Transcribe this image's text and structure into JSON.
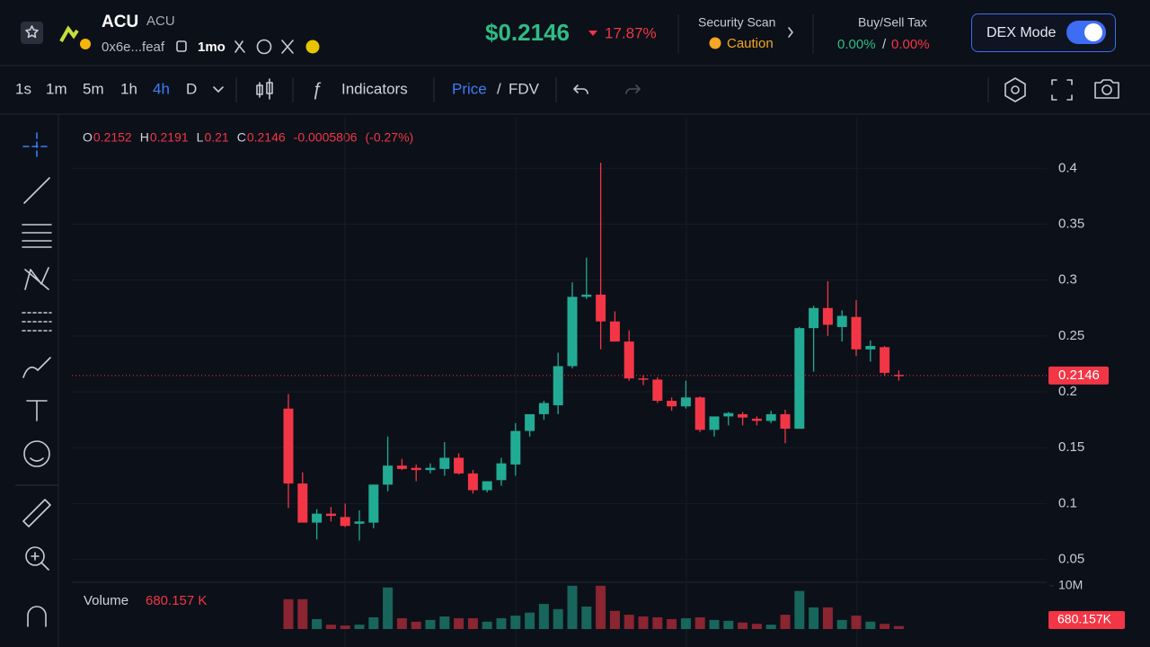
{
  "header": {
    "symbol": "ACU",
    "name": "ACU",
    "address": "0x6e...feaf",
    "age": "1mo",
    "price": "$0.2146",
    "change": "17.87%",
    "security_label": "Security Scan",
    "security_status": "Caution",
    "tax_label": "Buy/Sell Tax",
    "buy_tax": "0.00%",
    "tax_separator": "/",
    "sell_tax": "0.00%",
    "mode_button": "DEX Mode"
  },
  "toolbar": {
    "intervals": [
      "1s",
      "1m",
      "5m",
      "1h",
      "4h",
      "D"
    ],
    "active_interval": "4h",
    "indicators": "Indicators",
    "price_toggle": "Price",
    "separator": "/",
    "fdv_toggle": "FDV"
  },
  "legend": {
    "o_label": "O",
    "h_label": "H",
    "l_label": "L",
    "c_label": "C",
    "change": -0.0005806,
    "change_pct": "(-0.27%)"
  },
  "chart_data": {
    "type": "candlestick",
    "open": [
      0.185,
      0.118,
      0.083,
      0.091,
      0.088,
      0.082,
      0.083,
      0.117,
      0.134,
      0.132,
      0.13,
      0.131,
      0.141,
      0.127,
      0.112,
      0.121,
      0.135,
      0.165,
      0.18,
      0.188,
      0.223,
      0.285,
      0.287,
      0.263,
      0.245,
      0.212,
      0.211,
      0.192,
      0.187,
      0.195,
      0.166,
      0.178,
      0.18,
      0.176,
      0.174,
      0.18,
      0.167,
      0.257,
      0.275,
      0.258,
      0.267,
      0.238,
      0.24,
      0.2152
    ],
    "high": [
      0.198,
      0.128,
      0.095,
      0.097,
      0.1,
      0.094,
      0.117,
      0.16,
      0.14,
      0.135,
      0.136,
      0.155,
      0.145,
      0.13,
      0.12,
      0.141,
      0.172,
      0.18,
      0.192,
      0.235,
      0.298,
      0.32,
      0.405,
      0.272,
      0.255,
      0.215,
      0.213,
      0.195,
      0.21,
      0.196,
      0.177,
      0.182,
      0.182,
      0.178,
      0.183,
      0.184,
      0.258,
      0.277,
      0.299,
      0.273,
      0.282,
      0.246,
      0.241,
      0.2191
    ],
    "low": [
      0.096,
      0.084,
      0.068,
      0.084,
      0.079,
      0.067,
      0.078,
      0.111,
      0.13,
      0.12,
      0.127,
      0.125,
      0.126,
      0.109,
      0.11,
      0.116,
      0.125,
      0.16,
      0.175,
      0.18,
      0.221,
      0.283,
      0.238,
      0.245,
      0.21,
      0.206,
      0.19,
      0.183,
      0.185,
      0.164,
      0.16,
      0.17,
      0.17,
      0.17,
      0.172,
      0.154,
      0.167,
      0.218,
      0.25,
      0.245,
      0.232,
      0.227,
      0.214,
      0.21
    ],
    "close": [
      0.118,
      0.083,
      0.091,
      0.089,
      0.08,
      0.084,
      0.117,
      0.134,
      0.131,
      0.13,
      0.132,
      0.141,
      0.127,
      0.112,
      0.12,
      0.136,
      0.165,
      0.18,
      0.19,
      0.223,
      0.285,
      0.287,
      0.263,
      0.245,
      0.212,
      0.211,
      0.192,
      0.187,
      0.195,
      0.166,
      0.178,
      0.181,
      0.177,
      0.174,
      0.18,
      0.167,
      0.257,
      0.275,
      0.26,
      0.268,
      0.238,
      0.241,
      0.217,
      0.2146
    ],
    "volume": [
      6.9,
      6.9,
      2.3,
      1.0,
      0.8,
      1.0,
      2.7,
      9.6,
      2.5,
      1.7,
      2.1,
      2.9,
      2.5,
      2.5,
      1.7,
      2.5,
      3.1,
      3.8,
      5.8,
      4.6,
      10,
      5.2,
      10,
      4.2,
      3.3,
      2.9,
      2.7,
      2.3,
      2.5,
      2.7,
      2.1,
      1.9,
      1.5,
      1.2,
      1.0,
      3.3,
      8.8,
      5,
      5,
      2.1,
      3.1,
      1.7,
      1.2,
      0.680157
    ],
    "ylim": [
      0.032,
      0.43
    ],
    "yticks": [
      0.05,
      0.1,
      0.15,
      0.2,
      0.25,
      0.3,
      0.35,
      0.4
    ],
    "volume_ylim": [
      0,
      10.8
    ],
    "volume_ticks": [
      {
        "value": 10,
        "label": "10M"
      }
    ],
    "volume_title": "Volume",
    "volume_value_label": "680.157 K",
    "volume_axis_label": "680.157K",
    "up_color": "#22ab94",
    "down_color": "#f23645",
    "price_line": true
  }
}
